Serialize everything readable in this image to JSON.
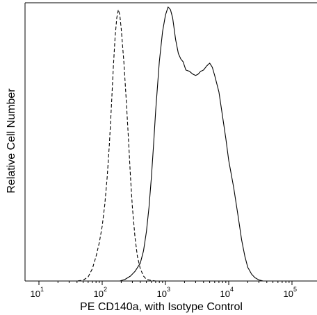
{
  "chart_data": {
    "type": "line",
    "title": "",
    "xlabel": "PE CD140a, with Isotype Control",
    "ylabel": "Relative Cell Number",
    "x_scale": "log",
    "xlim": [
      10,
      100000
    ],
    "ylim": [
      0,
      100
    ],
    "x_ticks": [
      {
        "base": "10",
        "exp": "1",
        "value": 10
      },
      {
        "base": "10",
        "exp": "2",
        "value": 100
      },
      {
        "base": "10",
        "exp": "3",
        "value": 1000
      },
      {
        "base": "10",
        "exp": "4",
        "value": 10000
      },
      {
        "base": "10",
        "exp": "5",
        "value": 100000
      }
    ],
    "grid": false,
    "legend": "none",
    "series": [
      {
        "style": "dashed",
        "color": "#000000",
        "points": [
          [
            10,
            0
          ],
          [
            40,
            0
          ],
          [
            50,
            0.3
          ],
          [
            60,
            1.5
          ],
          [
            70,
            4.5
          ],
          [
            80,
            9
          ],
          [
            90,
            14
          ],
          [
            100,
            20
          ],
          [
            110,
            28
          ],
          [
            120,
            38
          ],
          [
            130,
            50
          ],
          [
            140,
            64
          ],
          [
            150,
            78
          ],
          [
            160,
            89
          ],
          [
            170,
            96
          ],
          [
            180,
            99
          ],
          [
            190,
            97
          ],
          [
            200,
            92
          ],
          [
            220,
            80
          ],
          [
            240,
            66
          ],
          [
            260,
            52
          ],
          [
            280,
            38
          ],
          [
            300,
            27
          ],
          [
            330,
            16
          ],
          [
            360,
            9
          ],
          [
            400,
            4.5
          ],
          [
            450,
            1.8
          ],
          [
            500,
            0.6
          ],
          [
            600,
            0.2
          ],
          [
            700,
            0
          ],
          [
            100000,
            0
          ]
        ]
      },
      {
        "style": "solid",
        "color": "#000000",
        "points": [
          [
            10,
            0
          ],
          [
            190,
            0
          ],
          [
            230,
            0.6
          ],
          [
            280,
            1.8
          ],
          [
            330,
            3.5
          ],
          [
            400,
            6.5
          ],
          [
            450,
            11
          ],
          [
            500,
            18
          ],
          [
            550,
            27
          ],
          [
            600,
            38
          ],
          [
            650,
            50
          ],
          [
            700,
            62
          ],
          [
            800,
            80
          ],
          [
            900,
            91
          ],
          [
            1000,
            97
          ],
          [
            1100,
            100
          ],
          [
            1200,
            99
          ],
          [
            1300,
            96
          ],
          [
            1450,
            88
          ],
          [
            1600,
            83
          ],
          [
            1750,
            81
          ],
          [
            1900,
            80
          ],
          [
            2100,
            77
          ],
          [
            2400,
            76.5
          ],
          [
            2700,
            75.5
          ],
          [
            3000,
            75
          ],
          [
            3300,
            75.5
          ],
          [
            3600,
            76.5
          ],
          [
            4000,
            77
          ],
          [
            4500,
            78.5
          ],
          [
            5000,
            79.5
          ],
          [
            5500,
            78
          ],
          [
            6000,
            75
          ],
          [
            7000,
            69
          ],
          [
            8000,
            60
          ],
          [
            9000,
            52
          ],
          [
            10000,
            44
          ],
          [
            12000,
            34
          ],
          [
            14000,
            24
          ],
          [
            16000,
            15
          ],
          [
            18000,
            9
          ],
          [
            20000,
            5
          ],
          [
            23000,
            2.5
          ],
          [
            26000,
            1.2
          ],
          [
            30000,
            0.4
          ],
          [
            35000,
            0
          ],
          [
            100000,
            0
          ]
        ]
      }
    ]
  }
}
